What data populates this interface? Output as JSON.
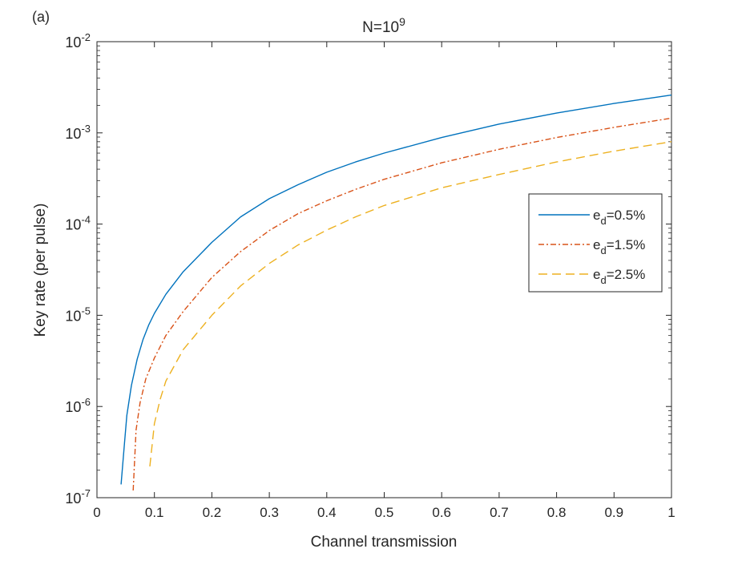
{
  "panel_label": "(a)",
  "chart_data": {
    "type": "line",
    "title": "N=10",
    "title_superscript": "9",
    "xlabel": "Channel transmission",
    "ylabel": "Key rate (per pulse)",
    "xlim": [
      0,
      1
    ],
    "ylim": [
      1e-07,
      0.01
    ],
    "yscale": "log",
    "grid": false,
    "legend_position": "right",
    "x_ticks": [
      {
        "value": 0,
        "label": "0"
      },
      {
        "value": 0.1,
        "label": "0.1"
      },
      {
        "value": 0.2,
        "label": "0.2"
      },
      {
        "value": 0.3,
        "label": "0.3"
      },
      {
        "value": 0.4,
        "label": "0.4"
      },
      {
        "value": 0.5,
        "label": "0.5"
      },
      {
        "value": 0.6,
        "label": "0.6"
      },
      {
        "value": 0.7,
        "label": "0.7"
      },
      {
        "value": 0.8,
        "label": "0.8"
      },
      {
        "value": 0.9,
        "label": "0.9"
      },
      {
        "value": 1,
        "label": "1"
      }
    ],
    "y_ticks": [
      {
        "value": 1e-07,
        "base": "10",
        "exp": "-7"
      },
      {
        "value": 1e-06,
        "base": "10",
        "exp": "-6"
      },
      {
        "value": 1e-05,
        "base": "10",
        "exp": "-5"
      },
      {
        "value": 0.0001,
        "base": "10",
        "exp": "-4"
      },
      {
        "value": 0.001,
        "base": "10",
        "exp": "-3"
      },
      {
        "value": 0.01,
        "base": "10",
        "exp": "-2"
      }
    ],
    "series": [
      {
        "label_main": "e",
        "label_sub": "d",
        "label_rest": "=0.5%",
        "color": "#0072bd",
        "dash": "",
        "points": [
          [
            0.042,
            1.4e-07
          ],
          [
            0.048,
            4e-07
          ],
          [
            0.052,
            8e-07
          ],
          [
            0.06,
            1.7e-06
          ],
          [
            0.07,
            3.3e-06
          ],
          [
            0.08,
            5.4e-06
          ],
          [
            0.09,
            7.8e-06
          ],
          [
            0.1,
            1.05e-05
          ],
          [
            0.12,
            1.7e-05
          ],
          [
            0.15,
            3e-05
          ],
          [
            0.2,
            6.3e-05
          ],
          [
            0.25,
            0.00012
          ],
          [
            0.3,
            0.00019
          ],
          [
            0.35,
            0.00027
          ],
          [
            0.4,
            0.00037
          ],
          [
            0.45,
            0.00048
          ],
          [
            0.5,
            0.0006
          ],
          [
            0.6,
            0.00089
          ],
          [
            0.7,
            0.00125
          ],
          [
            0.8,
            0.00165
          ],
          [
            0.9,
            0.0021
          ],
          [
            1.0,
            0.0026
          ]
        ]
      },
      {
        "label_main": "e",
        "label_sub": "d",
        "label_rest": "=1.5%",
        "color": "#d95319",
        "dash": "7,3,2,3",
        "points": [
          [
            0.063,
            1.2e-07
          ],
          [
            0.068,
            5.5e-07
          ],
          [
            0.075,
            1.1e-06
          ],
          [
            0.085,
            2e-06
          ],
          [
            0.1,
            3.4e-06
          ],
          [
            0.12,
            6e-06
          ],
          [
            0.15,
            1.1e-05
          ],
          [
            0.2,
            2.6e-05
          ],
          [
            0.25,
            5e-05
          ],
          [
            0.3,
            8.5e-05
          ],
          [
            0.35,
            0.00013
          ],
          [
            0.4,
            0.00018
          ],
          [
            0.45,
            0.00024
          ],
          [
            0.5,
            0.00031
          ],
          [
            0.6,
            0.00047
          ],
          [
            0.7,
            0.00066
          ],
          [
            0.8,
            0.00089
          ],
          [
            0.9,
            0.00115
          ],
          [
            1.0,
            0.00145
          ]
        ]
      },
      {
        "label_main": "e",
        "label_sub": "d",
        "label_rest": "=2.5%",
        "color": "#edb120",
        "dash": "11,6",
        "points": [
          [
            0.092,
            2.2e-07
          ],
          [
            0.1,
            6.5e-07
          ],
          [
            0.11,
            1.2e-06
          ],
          [
            0.12,
            1.9e-06
          ],
          [
            0.15,
            4.2e-06
          ],
          [
            0.2,
            1e-05
          ],
          [
            0.25,
            2.1e-05
          ],
          [
            0.3,
            3.7e-05
          ],
          [
            0.35,
            5.9e-05
          ],
          [
            0.4,
            8.6e-05
          ],
          [
            0.45,
            0.00012
          ],
          [
            0.5,
            0.00016
          ],
          [
            0.6,
            0.00025
          ],
          [
            0.7,
            0.00035
          ],
          [
            0.8,
            0.00048
          ],
          [
            0.9,
            0.00063
          ],
          [
            1.0,
            0.0008
          ]
        ]
      }
    ]
  }
}
